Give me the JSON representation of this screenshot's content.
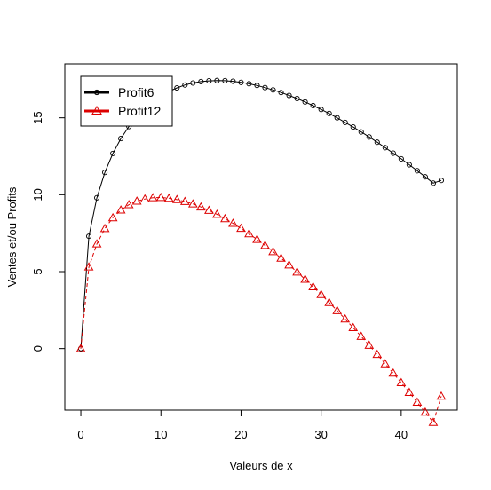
{
  "chart_data": {
    "type": "line",
    "title": "",
    "xlabel": "Valeurs de x",
    "ylabel": "Ventes et/ou Profits",
    "xlim": [
      -2,
      47
    ],
    "ylim": [
      -4,
      18.5
    ],
    "x_ticks": [
      0,
      10,
      20,
      30,
      40
    ],
    "y_ticks": [
      0,
      5,
      10,
      15
    ],
    "grid": false,
    "legend_position": "top-left",
    "x": [
      0,
      1,
      2,
      3,
      4,
      5,
      6,
      7,
      8,
      9,
      10,
      11,
      12,
      13,
      14,
      15,
      16,
      17,
      18,
      19,
      20,
      21,
      22,
      23,
      24,
      25,
      26,
      27,
      28,
      29,
      30,
      31,
      32,
      33,
      34,
      35,
      36,
      37,
      38,
      39,
      40,
      41,
      42,
      43,
      44,
      45
    ],
    "series": [
      {
        "name": "Profit6",
        "color": "#000000",
        "line": "solid",
        "marker": "circle",
        "values": [
          0.0,
          7.3,
          9.8,
          11.45,
          12.68,
          13.65,
          14.43,
          15.07,
          15.6,
          16.04,
          16.41,
          16.71,
          16.94,
          17.13,
          17.26,
          17.35,
          17.4,
          17.42,
          17.41,
          17.37,
          17.3,
          17.21,
          17.1,
          16.96,
          16.81,
          16.64,
          16.45,
          16.25,
          16.03,
          15.79,
          15.54,
          15.28,
          15.0,
          14.7,
          14.4,
          14.08,
          13.75,
          13.41,
          13.06,
          12.7,
          12.33,
          11.95,
          11.56,
          11.16,
          10.75,
          10.93
        ]
      },
      {
        "name": "Profit12",
        "color": "#dd0000",
        "line": "dashed",
        "marker": "triangle",
        "values": [
          0.0,
          5.3,
          6.8,
          7.8,
          8.5,
          9.0,
          9.35,
          9.58,
          9.72,
          9.8,
          9.82,
          9.77,
          9.68,
          9.56,
          9.4,
          9.2,
          8.98,
          8.72,
          8.44,
          8.14,
          7.81,
          7.46,
          7.09,
          6.7,
          6.3,
          5.87,
          5.43,
          4.97,
          4.5,
          4.01,
          3.51,
          2.99,
          2.46,
          1.92,
          1.36,
          0.79,
          0.21,
          -0.38,
          -0.99,
          -1.6,
          -2.22,
          -2.85,
          -3.49,
          -4.14,
          -4.8,
          -3.1
        ]
      }
    ]
  }
}
